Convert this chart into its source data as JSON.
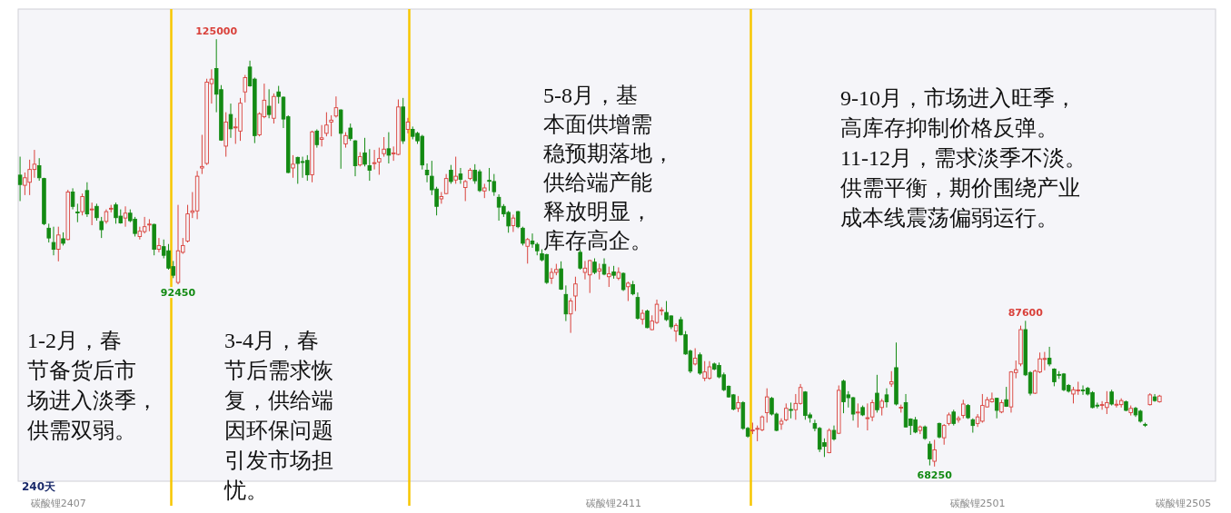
{
  "chart_data": {
    "type": "candlestick",
    "categories": [
      null,
      null,
      null,
      null,
      null,
      null,
      null,
      null,
      "碳酸锂2407",
      null,
      null,
      null,
      null,
      null,
      null,
      null,
      null,
      null,
      null,
      null,
      null,
      null,
      null,
      null,
      null,
      null,
      null,
      null,
      null,
      null,
      null,
      null,
      null,
      null,
      null,
      null,
      null,
      null,
      null,
      null,
      null,
      null,
      null,
      null,
      null,
      null,
      null,
      null,
      null,
      null,
      null,
      null,
      null,
      null,
      null,
      null,
      null,
      null,
      null,
      null,
      null,
      null,
      null,
      null,
      null,
      null,
      null,
      null,
      null,
      null,
      null,
      null,
      null,
      null,
      null,
      null,
      null,
      null,
      null,
      null,
      null,
      null,
      null,
      null,
      null,
      null,
      null,
      null,
      null,
      null,
      null,
      null,
      null,
      null,
      null,
      null,
      null,
      null,
      null,
      null,
      null,
      null,
      null,
      null,
      null,
      null,
      null,
      null,
      null,
      null,
      null,
      null,
      null,
      null,
      null,
      null,
      null,
      null,
      null,
      null,
      null,
      null,
      null,
      null,
      "碳酸锂2411",
      null,
      null,
      null,
      null,
      null,
      null,
      null,
      null,
      null,
      null,
      null,
      null,
      null,
      null,
      null,
      null,
      null,
      null,
      null,
      null,
      null,
      null,
      null,
      null,
      null,
      null,
      null,
      null,
      null,
      null,
      null,
      null,
      null,
      null,
      null,
      null,
      null,
      null,
      null,
      null,
      null,
      null,
      null,
      null,
      null,
      null,
      null,
      null,
      null,
      null,
      null,
      null,
      null,
      null,
      null,
      null,
      null,
      null,
      null,
      null,
      null,
      null,
      null,
      null,
      null,
      null,
      null,
      null,
      null,
      null,
      null,
      null,
      null,
      null,
      null,
      "碳酸锂2501",
      null,
      null,
      null,
      null,
      null,
      null,
      null,
      null,
      null,
      null,
      null,
      null,
      null,
      null,
      null,
      null,
      null,
      null,
      null,
      null,
      null,
      null,
      null,
      null,
      null,
      null,
      null,
      null,
      null,
      null,
      null,
      null,
      null,
      null,
      null,
      null,
      null,
      null,
      null,
      null,
      null,
      null,
      "碳酸锂2505",
      null,
      null,
      null,
      null,
      null,
      null
    ],
    "ohlc": [
      [
        106950,
        109400,
        103500,
        105700
      ],
      [
        105600,
        107300,
        104300,
        106600
      ],
      [
        106000,
        109000,
        104300,
        107700
      ],
      [
        107700,
        110300,
        106600,
        108400
      ],
      [
        108200,
        109200,
        106200,
        106600
      ],
      [
        106500,
        106600,
        100300,
        100500
      ],
      [
        99900,
        100500,
        98000,
        98600
      ],
      [
        98000,
        100100,
        96300,
        97100
      ],
      [
        97100,
        100100,
        95500,
        99000
      ],
      [
        98500,
        99350,
        97600,
        97900
      ],
      [
        98400,
        105000,
        98300,
        104700
      ],
      [
        104700,
        105200,
        102400,
        102800
      ],
      [
        102050,
        103150,
        100700,
        101950
      ],
      [
        102100,
        104500,
        101600,
        104100
      ],
      [
        104900,
        106000,
        101400,
        101800
      ],
      [
        102350,
        103300,
        100300,
        102450
      ],
      [
        102800,
        103150,
        100900,
        101300
      ],
      [
        100800,
        101400,
        98600,
        99700
      ],
      [
        100800,
        102400,
        100500,
        102100
      ],
      [
        102450,
        103000,
        102000,
        102550
      ],
      [
        103000,
        103300,
        100500,
        101300
      ],
      [
        101500,
        102400,
        100500,
        100600
      ],
      [
        101250,
        102800,
        100100,
        101900
      ],
      [
        101900,
        102400,
        100700,
        100900
      ],
      [
        101100,
        101400,
        98800,
        99200
      ],
      [
        98800,
        100100,
        98400,
        99500
      ],
      [
        99450,
        101400,
        99200,
        100100
      ],
      [
        100350,
        101100,
        99500,
        100450
      ],
      [
        100400,
        100500,
        96300,
        97100
      ],
      [
        97100,
        98600,
        96700,
        97600
      ],
      [
        97450,
        98400,
        95900,
        96300
      ],
      [
        96900,
        97800,
        94400,
        94600
      ],
      [
        94800,
        95550,
        93270,
        93650
      ],
      [
        92700,
        103000,
        92450,
        96900
      ],
      [
        96700,
        98600,
        96500,
        97600
      ],
      [
        98200,
        103000,
        98000,
        101800
      ],
      [
        102000,
        104700,
        101250,
        102200
      ],
      [
        102200,
        107500,
        101100,
        106800
      ],
      [
        107900,
        112300,
        107100,
        108100
      ],
      [
        108500,
        119750,
        108300,
        119300
      ],
      [
        119100,
        121000,
        116450,
        119700
      ],
      [
        121100,
        125000,
        115300,
        117700
      ],
      [
        118300,
        118900,
        111500,
        111600
      ],
      [
        110800,
        115300,
        109400,
        114000
      ],
      [
        115000,
        116450,
        111900,
        113100
      ],
      [
        113250,
        114550,
        111100,
        113350
      ],
      [
        112800,
        117200,
        111500,
        116500
      ],
      [
        118000,
        120250,
        116600,
        119900
      ],
      [
        121300,
        122150,
        118700,
        118800
      ],
      [
        119700,
        119900,
        111200,
        112200
      ],
      [
        112300,
        115300,
        112100,
        115100
      ],
      [
        114700,
        119100,
        114500,
        116900
      ],
      [
        116100,
        118350,
        114500,
        115000
      ],
      [
        114500,
        117800,
        113800,
        117400
      ],
      [
        118000,
        118800,
        116450,
        117400
      ],
      [
        117300,
        117400,
        113200,
        114400
      ],
      [
        114700,
        114900,
        107200,
        107300
      ],
      [
        107900,
        109600,
        106600,
        108400
      ],
      [
        109300,
        109400,
        105800,
        108500
      ],
      [
        108750,
        109400,
        106600,
        108650
      ],
      [
        108900,
        109600,
        106200,
        107000
      ],
      [
        107000,
        112850,
        106000,
        112700
      ],
      [
        112800,
        113030,
        110600,
        111000
      ],
      [
        111700,
        113600,
        110750,
        111900
      ],
      [
        112500,
        115300,
        112100,
        113600
      ],
      [
        114000,
        114900,
        112100,
        114250
      ],
      [
        114800,
        117400,
        114600,
        115900
      ],
      [
        115600,
        115700,
        107800,
        112500
      ],
      [
        111100,
        112650,
        110600,
        112200
      ],
      [
        113200,
        113800,
        111500,
        111800
      ],
      [
        111500,
        111600,
        106800,
        108200
      ],
      [
        108300,
        110000,
        108100,
        109400
      ],
      [
        109900,
        111900,
        108100,
        108400
      ],
      [
        108200,
        110400,
        106200,
        107600
      ],
      [
        108500,
        110300,
        107700,
        108600
      ],
      [
        108700,
        110600,
        107000,
        109150
      ],
      [
        109800,
        112000,
        109400,
        110400
      ],
      [
        110450,
        112650,
        108500,
        109600
      ],
      [
        109850,
        110750,
        108850,
        109900
      ],
      [
        109700,
        117000,
        109600,
        116000
      ],
      [
        116000,
        117200,
        111100,
        111500
      ],
      [
        113030,
        114550,
        112500,
        114000
      ],
      [
        113030,
        113400,
        111700,
        112100
      ],
      [
        112500,
        112700,
        111100,
        111500
      ],
      [
        112100,
        112300,
        107700,
        108300
      ],
      [
        107600,
        108500,
        106000,
        107000
      ],
      [
        106800,
        108850,
        104300,
        105000
      ],
      [
        105100,
        105400,
        101600,
        102800
      ],
      [
        103800,
        104700,
        103150,
        104100
      ],
      [
        104500,
        107100,
        104400,
        106500
      ],
      [
        107600,
        108300,
        105800,
        106100
      ],
      [
        106300,
        109400,
        105800,
        106800
      ],
      [
        107100,
        107900,
        105800,
        106400
      ],
      [
        105300,
        106300,
        103500,
        106100
      ],
      [
        106500,
        107900,
        106300,
        107600
      ],
      [
        107600,
        108400,
        105800,
        106200
      ],
      [
        107400,
        107700,
        104700,
        104900
      ],
      [
        104850,
        105800,
        103900,
        105250
      ],
      [
        106250,
        107900,
        104850,
        106150
      ],
      [
        106100,
        107100,
        104200,
        104750
      ],
      [
        104000,
        104400,
        100900,
        102700
      ],
      [
        102800,
        103100,
        101400,
        101800
      ],
      [
        102000,
        102200,
        99300,
        100200
      ],
      [
        100250,
        101700,
        99400,
        101250
      ],
      [
        102100,
        102200,
        99900,
        100100
      ],
      [
        99900,
        100100,
        97600,
        97900
      ],
      [
        97500,
        98600,
        95200,
        98400
      ],
      [
        98200,
        99200,
        97300,
        97800
      ],
      [
        97750,
        98000,
        96300,
        96900
      ],
      [
        96500,
        97100,
        95500,
        95700
      ],
      [
        96400,
        96500,
        92500,
        92700
      ],
      [
        93270,
        94600,
        92500,
        94030
      ],
      [
        94030,
        95170,
        93650,
        94410
      ],
      [
        94500,
        95500,
        91700,
        91800
      ],
      [
        91100,
        92300,
        87570,
        88520
      ],
      [
        88520,
        90610,
        86000,
        90230
      ],
      [
        90900,
        93460,
        88900,
        92500
      ],
      [
        96700,
        97100,
        94400,
        94600
      ],
      [
        94030,
        95550,
        93100,
        94600
      ],
      [
        93700,
        95700,
        91300,
        95600
      ],
      [
        95400,
        95900,
        93800,
        94030
      ],
      [
        94200,
        95200,
        93100,
        94500
      ],
      [
        95100,
        95900,
        93650,
        93800
      ],
      [
        93460,
        94800,
        92100,
        93840
      ],
      [
        94100,
        94900,
        93200,
        93650
      ],
      [
        93270,
        94700,
        93000,
        94030
      ],
      [
        93900,
        94030,
        91560,
        91750
      ],
      [
        92130,
        92800,
        90230,
        92600
      ],
      [
        92400,
        92900,
        90990,
        91180
      ],
      [
        90700,
        91370,
        87760,
        87950
      ],
      [
        87800,
        89090,
        87100,
        88600
      ],
      [
        88900,
        89090,
        86620,
        86700
      ],
      [
        86430,
        88330,
        86350,
        87570
      ],
      [
        87380,
        90420,
        87190,
        89800
      ],
      [
        88950,
        89400,
        88330,
        89050
      ],
      [
        88710,
        90230,
        87570,
        87760
      ],
      [
        88250,
        88330,
        86500,
        86810
      ],
      [
        86240,
        87270,
        84830,
        87000
      ],
      [
        87760,
        88140,
        85670,
        85750
      ],
      [
        85750,
        86240,
        83090,
        83200
      ],
      [
        83580,
        83770,
        80650,
        80920
      ],
      [
        81870,
        83960,
        81680,
        82630
      ],
      [
        83090,
        83390,
        80430,
        80650
      ],
      [
        79970,
        82250,
        79590,
        80810
      ],
      [
        79970,
        82250,
        79780,
        81490
      ],
      [
        81870,
        82060,
        81030,
        81190
      ],
      [
        81680,
        82060,
        79970,
        80160
      ],
      [
        80430,
        80730,
        78260,
        78450
      ],
      [
        78910,
        79020,
        77390,
        77500
      ],
      [
        77770,
        77880,
        75710,
        75870
      ],
      [
        75980,
        77610,
        75490,
        76740
      ],
      [
        76740,
        76930,
        73130,
        73320
      ],
      [
        73320,
        73510,
        72070,
        72290
      ],
      [
        73000,
        74080,
        72560,
        73100
      ],
      [
        73210,
        73700,
        71610,
        73320
      ],
      [
        73130,
        75030,
        72940,
        74840
      ],
      [
        75410,
        78640,
        74080,
        77500
      ],
      [
        77310,
        77500,
        75030,
        75220
      ],
      [
        75220,
        75410,
        72940,
        73050
      ],
      [
        73890,
        74650,
        73130,
        74270
      ],
      [
        74460,
        76630,
        74270,
        75980
      ],
      [
        75830,
        76740,
        74650,
        75750
      ],
      [
        75790,
        77880,
        74460,
        76630
      ],
      [
        76630,
        79210,
        76470,
        78750
      ],
      [
        78150,
        78260,
        74460,
        75030
      ],
      [
        75110,
        75410,
        74080,
        74730
      ],
      [
        73970,
        74460,
        72940,
        73320
      ],
      [
        73320,
        73510,
        70170,
        70550
      ],
      [
        71420,
        71990,
        69520,
        70930
      ],
      [
        70090,
        73320,
        70010,
        73050
      ],
      [
        73050,
        73700,
        71690,
        71910
      ],
      [
        72670,
        79020,
        72560,
        78370
      ],
      [
        79590,
        79780,
        75330,
        76850
      ],
      [
        77770,
        78260,
        76090,
        77390
      ],
      [
        77390,
        77500,
        74350,
        75220
      ],
      [
        75410,
        76630,
        73430,
        75490
      ],
      [
        76090,
        76360,
        74950,
        75110
      ],
      [
        74650,
        76630,
        73050,
        74730
      ],
      [
        74840,
        77120,
        74270,
        76740
      ],
      [
        77990,
        80430,
        75410,
        75790
      ],
      [
        76090,
        77230,
        75030,
        76930
      ],
      [
        77770,
        78640,
        76090,
        76850
      ],
      [
        79210,
        80920,
        78830,
        79510
      ],
      [
        81380,
        84720,
        76360,
        76550
      ],
      [
        76050,
        76470,
        75410,
        76130
      ],
      [
        76740,
        77880,
        73430,
        73510
      ],
      [
        74570,
        74650,
        72450,
        73700
      ],
      [
        74460,
        74840,
        72670,
        72830
      ],
      [
        73050,
        73700,
        72560,
        73510
      ],
      [
        73510,
        73700,
        71800,
        71990
      ],
      [
        71230,
        71610,
        68400,
        69250
      ],
      [
        68950,
        71800,
        68250,
        70470
      ],
      [
        73970,
        74080,
        71990,
        72180
      ],
      [
        72070,
        73890,
        71150,
        73700
      ],
      [
        73970,
        75410,
        73700,
        75110
      ],
      [
        75490,
        75790,
        73700,
        73970
      ],
      [
        74460,
        74950,
        74080,
        74650
      ],
      [
        75030,
        77120,
        74650,
        76550
      ],
      [
        76360,
        76550,
        74570,
        74730
      ],
      [
        74460,
        74650,
        72750,
        73700
      ],
      [
        73970,
        75220,
        73510,
        74840
      ],
      [
        74270,
        77880,
        74080,
        76360
      ],
      [
        76170,
        77500,
        76090,
        77120
      ],
      [
        76850,
        78070,
        76740,
        77230
      ],
      [
        77310,
        77390,
        74650,
        75710
      ],
      [
        75490,
        77120,
        75330,
        76740
      ],
      [
        77120,
        78830,
        76170,
        76250
      ],
      [
        76170,
        80920,
        75410,
        80810
      ],
      [
        80730,
        82330,
        79970,
        81110
      ],
      [
        81870,
        86960,
        81570,
        86430
      ],
      [
        86430,
        87600,
        80270,
        80430
      ],
      [
        80730,
        80920,
        77690,
        77990
      ],
      [
        77990,
        81110,
        77880,
        80920
      ],
      [
        80810,
        83390,
        80650,
        82550
      ],
      [
        82500,
        83470,
        81030,
        82600
      ],
      [
        82630,
        84150,
        81570,
        81870
      ],
      [
        81190,
        81300,
        78910,
        79510
      ],
      [
        80480,
        80920,
        79890,
        80380
      ],
      [
        80540,
        80660,
        78260,
        78450
      ],
      [
        79020,
        79210,
        78070,
        78260
      ],
      [
        77880,
        78830,
        76630,
        78450
      ],
      [
        78320,
        79510,
        77770,
        78420
      ],
      [
        78420,
        79020,
        77770,
        78320
      ],
      [
        78640,
        78830,
        77690,
        77880
      ],
      [
        78070,
        78260,
        75980,
        76090
      ],
      [
        76400,
        76740,
        75980,
        76320
      ],
      [
        76400,
        76930,
        75790,
        76480
      ],
      [
        76090,
        78260,
        75220,
        76740
      ],
      [
        78150,
        78450,
        76360,
        76550
      ],
      [
        76440,
        77120,
        76090,
        76520
      ],
      [
        76470,
        77310,
        76090,
        77010
      ],
      [
        76850,
        77010,
        75600,
        75710
      ],
      [
        75410,
        76360,
        75030,
        75980
      ],
      [
        75980,
        76170,
        74840,
        75110
      ],
      [
        75600,
        75790,
        74080,
        74270
      ],
      [
        73850,
        74080,
        73510,
        73770
      ],
      [
        76470,
        77990,
        76360,
        77770
      ],
      [
        77500,
        77880,
        76850,
        77010
      ],
      [
        76850,
        77770,
        76740,
        77610
      ],
      null,
      null,
      null,
      null,
      null,
      null,
      null,
      null,
      null,
      null,
      null
    ],
    "colors": [
      "#138a13",
      "#d9413b",
      "#d9413b",
      "#d9413b",
      "#138a13",
      "#138a13",
      "#138a13",
      "#138a13",
      "#d9413b",
      "#138a13",
      "#d9413b",
      "#138a13",
      "#138a13",
      "#d9413b",
      "#138a13",
      "#d9413b",
      "#138a13",
      "#138a13",
      "#d9413b",
      "#d9413b",
      "#138a13",
      "#138a13",
      "#d9413b",
      "#138a13",
      "#138a13",
      "#d9413b",
      "#d9413b",
      "#d9413b",
      "#138a13",
      "#d9413b",
      "#138a13",
      "#138a13",
      "#138a13",
      "#d9413b",
      "#d9413b",
      "#d9413b",
      "#d9413b",
      "#d9413b",
      "#d9413b",
      "#d9413b",
      "#d9413b",
      "#138a13",
      "#138a13",
      "#d9413b",
      "#138a13",
      "#d9413b",
      "#d9413b",
      "#d9413b",
      "#138a13",
      "#138a13",
      "#d9413b",
      "#d9413b",
      "#138a13",
      "#d9413b",
      "#138a13",
      "#138a13",
      "#138a13",
      "#d9413b",
      "#138a13",
      "#138a13",
      "#138a13",
      "#d9413b",
      "#138a13",
      "#d9413b",
      "#d9413b",
      "#d9413b",
      "#d9413b",
      "#138a13",
      "#d9413b",
      "#138a13",
      "#138a13",
      "#d9413b",
      "#138a13",
      "#138a13",
      "#d9413b",
      "#d9413b",
      "#d9413b",
      "#138a13",
      "#d9413b",
      "#d9413b",
      "#138a13",
      "#d9413b",
      "#138a13",
      "#138a13",
      "#138a13",
      "#138a13",
      "#138a13",
      "#138a13",
      "#d9413b",
      "#d9413b",
      "#138a13",
      "#d9413b",
      "#138a13",
      "#d9413b",
      "#d9413b",
      "#138a13",
      "#138a13",
      "#d9413b",
      "#138a13",
      "#138a13",
      "#138a13",
      "#138a13",
      "#138a13",
      "#d9413b",
      "#138a13",
      "#138a13",
      "#d9413b",
      "#138a13",
      "#138a13",
      "#138a13",
      "#138a13",
      "#d9413b",
      "#d9413b",
      "#138a13",
      "#138a13",
      "#d9413b",
      "#d9413b",
      "#138a13",
      "#d9413b",
      "#d9413b",
      "#138a13",
      "#d9413b",
      "#138a13",
      "#d9413b",
      "#138a13",
      "#d9413b",
      "#138a13",
      "#d9413b",
      "#138a13",
      "#138a13",
      "#d9413b",
      "#138a13",
      "#d9413b",
      "#d9413b",
      "#d9413b",
      "#138a13",
      "#138a13",
      "#d9413b",
      "#138a13",
      "#138a13",
      "#138a13",
      "#d9413b",
      "#138a13",
      "#d9413b",
      "#d9413b",
      "#138a13",
      "#138a13",
      "#138a13",
      "#138a13",
      "#138a13",
      "#d9413b",
      "#138a13",
      "#138a13",
      "#d9413b",
      "#d9413b",
      "#d9413b",
      "#d9413b",
      "#138a13",
      "#138a13",
      "#d9413b",
      "#d9413b",
      "#138a13",
      "#d9413b",
      "#d9413b",
      "#138a13",
      "#138a13",
      "#138a13",
      "#138a13",
      "#138a13",
      "#d9413b",
      "#138a13",
      "#d9413b",
      "#138a13",
      "#138a13",
      "#138a13",
      "#d9413b",
      "#138a13",
      "#d9413b",
      "#d9413b",
      "#138a13",
      "#d9413b",
      "#138a13",
      "#d9413b",
      "#138a13",
      "#d9413b",
      "#138a13",
      "#138a13",
      "#138a13",
      "#d9413b",
      "#138a13",
      "#138a13",
      "#d9413b",
      "#138a13",
      "#d9413b",
      "#d9413b",
      "#138a13",
      "#d9413b",
      "#d9413b",
      "#138a13",
      "#138a13",
      "#d9413b",
      "#d9413b",
      "#d9413b",
      "#d9413b",
      "#138a13",
      "#d9413b",
      "#138a13",
      "#d9413b",
      "#d9413b",
      "#d9413b",
      "#138a13",
      "#138a13",
      "#d9413b",
      "#d9413b",
      "#d9413b",
      "#138a13",
      "#138a13",
      "#138a13",
      "#138a13",
      "#138a13",
      "#d9413b",
      "#d9413b",
      "#138a13",
      "#138a13",
      "#138a13",
      "#138a13",
      "#d9413b",
      "#d9413b",
      "#138a13",
      "#d9413b",
      "#d9413b",
      "#138a13",
      "#d9413b",
      "#138a13",
      "#138a13",
      "#138a13",
      "#d9413b",
      "#138a13",
      "#d9413b",
      null,
      null,
      null,
      null,
      null,
      null,
      null,
      null,
      null,
      null,
      null
    ],
    "ylim": [
      66300,
      129000
    ],
    "annotations": [
      "1-2月，春",
      "节备货后市",
      "场进入淡季，",
      "供需双弱。",
      "3-4月，春",
      "节后需求恢",
      "复，供给端",
      "因环保问题",
      "引发市场担",
      "忧。",
      "5-8月，基",
      "本面供增需",
      "稳预期落地，",
      "供给端产能",
      "释放明显，",
      "库存高企。",
      "9-10月，市场进入旺季，",
      "高库存抑制价格反弹。",
      "11-12月，需求淡季不淡。",
      "供需平衡，期价围绕产业",
      "成本线震荡偏弱运行。",
      "240天",
      {
        "text": "125000",
        "y": 125000
      },
      {
        "text": "92450",
        "y": 92450
      },
      {
        "text": "87600",
        "y": 87600
      },
      {
        "text": "68250",
        "y": 68250
      }
    ]
  }
}
